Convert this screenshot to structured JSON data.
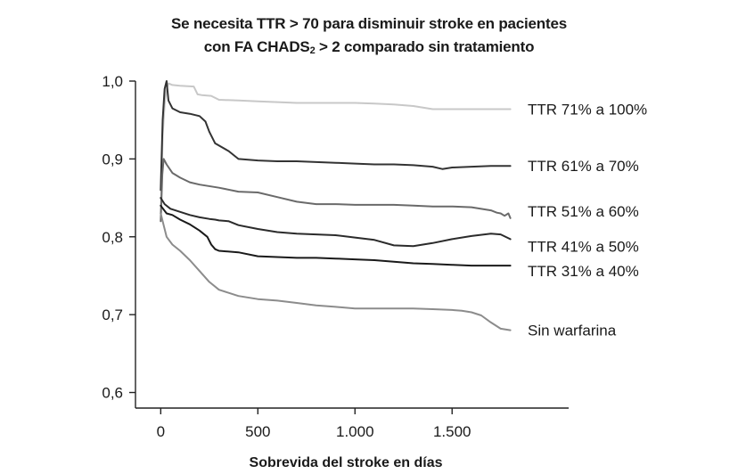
{
  "chart_data": {
    "type": "line",
    "title_line1": "Se necesita TTR > 70 para disminuir stroke en pacientes",
    "title_line2_prefix": "con FA CHADS",
    "title_line2_sub": "2",
    "title_line2_suffix": " > 2 comparado sin tratamiento",
    "xlabel": "Sobrevida del stroke en días",
    "ylabel": "",
    "xlim": [
      -130,
      2100
    ],
    "ylim": [
      0.58,
      1.0
    ],
    "x_ticks": [
      0,
      500,
      1000,
      1500
    ],
    "x_tick_labels": [
      "0",
      "500",
      "1.000",
      "1.500"
    ],
    "y_ticks": [
      0.6,
      0.7,
      0.8,
      0.9,
      1.0
    ],
    "y_tick_labels": [
      "0,6",
      "0,7",
      "0,8",
      "0,9",
      "1,0"
    ],
    "grid": false,
    "legend": "inline labels at right end of each line",
    "series": [
      {
        "name": "TTR 71% a 100%",
        "color": "#c8c8c8",
        "x": [
          0,
          10,
          20,
          30,
          40,
          60,
          100,
          170,
          190,
          210,
          260,
          300,
          400,
          500,
          600,
          700,
          800,
          900,
          1000,
          1100,
          1200,
          1300,
          1400,
          1500,
          1600,
          1700,
          1800
        ],
        "y": [
          0.83,
          0.93,
          0.97,
          0.99,
          0.997,
          0.995,
          0.994,
          0.993,
          0.983,
          0.982,
          0.981,
          0.976,
          0.975,
          0.974,
          0.973,
          0.972,
          0.972,
          0.972,
          0.972,
          0.971,
          0.97,
          0.968,
          0.964,
          0.964,
          0.964,
          0.964,
          0.964
        ]
      },
      {
        "name": "TTR 61% a 70%",
        "color": "#333333",
        "x": [
          0,
          10,
          20,
          30,
          40,
          60,
          100,
          150,
          200,
          230,
          250,
          280,
          350,
          400,
          500,
          600,
          700,
          800,
          900,
          1000,
          1100,
          1200,
          1300,
          1400,
          1450,
          1500,
          1600,
          1700,
          1800
        ],
        "y": [
          0.86,
          0.95,
          0.99,
          1.0,
          0.975,
          0.965,
          0.96,
          0.958,
          0.955,
          0.948,
          0.935,
          0.92,
          0.91,
          0.9,
          0.898,
          0.897,
          0.897,
          0.896,
          0.895,
          0.894,
          0.893,
          0.893,
          0.892,
          0.89,
          0.887,
          0.889,
          0.89,
          0.891,
          0.891
        ]
      },
      {
        "name": "TTR 51% a 60%",
        "color": "#6a6a6a",
        "x": [
          0,
          8,
          15,
          30,
          60,
          100,
          150,
          200,
          300,
          400,
          500,
          600,
          700,
          800,
          900,
          1000,
          1100,
          1200,
          1300,
          1400,
          1500,
          1600,
          1700,
          1730,
          1750,
          1770,
          1790,
          1800
        ],
        "y": [
          0.82,
          0.88,
          0.9,
          0.893,
          0.882,
          0.876,
          0.87,
          0.867,
          0.863,
          0.858,
          0.857,
          0.851,
          0.845,
          0.842,
          0.842,
          0.841,
          0.841,
          0.841,
          0.84,
          0.839,
          0.839,
          0.838,
          0.834,
          0.831,
          0.83,
          0.827,
          0.83,
          0.824
        ]
      },
      {
        "name": "TTR 41% a 50%",
        "color": "#2b2b2b",
        "x": [
          0,
          20,
          50,
          100,
          150,
          200,
          250,
          280,
          300,
          350,
          400,
          500,
          600,
          700,
          800,
          900,
          1000,
          1100,
          1200,
          1300,
          1400,
          1500,
          1600,
          1700,
          1750,
          1800
        ],
        "y": [
          0.85,
          0.842,
          0.836,
          0.832,
          0.828,
          0.825,
          0.823,
          0.822,
          0.821,
          0.82,
          0.815,
          0.81,
          0.806,
          0.804,
          0.803,
          0.802,
          0.799,
          0.796,
          0.789,
          0.788,
          0.792,
          0.797,
          0.801,
          0.804,
          0.803,
          0.797
        ]
      },
      {
        "name": "TTR 31% a 40%",
        "color": "#1a1a1a",
        "x": [
          0,
          30,
          60,
          100,
          150,
          200,
          240,
          260,
          280,
          300,
          400,
          500,
          600,
          700,
          800,
          900,
          1000,
          1100,
          1200,
          1300,
          1400,
          1500,
          1600,
          1700,
          1800
        ],
        "y": [
          0.84,
          0.83,
          0.828,
          0.822,
          0.816,
          0.808,
          0.8,
          0.79,
          0.784,
          0.782,
          0.78,
          0.775,
          0.774,
          0.773,
          0.773,
          0.772,
          0.771,
          0.77,
          0.768,
          0.766,
          0.765,
          0.764,
          0.763,
          0.763,
          0.763
        ]
      },
      {
        "name": "Sin warfarina",
        "color": "#8c8c8c",
        "x": [
          0,
          10,
          30,
          60,
          100,
          150,
          200,
          250,
          300,
          350,
          400,
          500,
          600,
          700,
          800,
          900,
          1000,
          1100,
          1200,
          1300,
          1400,
          1500,
          1550,
          1600,
          1650,
          1700,
          1750,
          1800
        ],
        "y": [
          0.83,
          0.82,
          0.8,
          0.79,
          0.782,
          0.77,
          0.756,
          0.742,
          0.732,
          0.728,
          0.724,
          0.72,
          0.718,
          0.715,
          0.712,
          0.71,
          0.708,
          0.708,
          0.708,
          0.708,
          0.707,
          0.706,
          0.705,
          0.703,
          0.699,
          0.69,
          0.682,
          0.68
        ]
      }
    ]
  }
}
